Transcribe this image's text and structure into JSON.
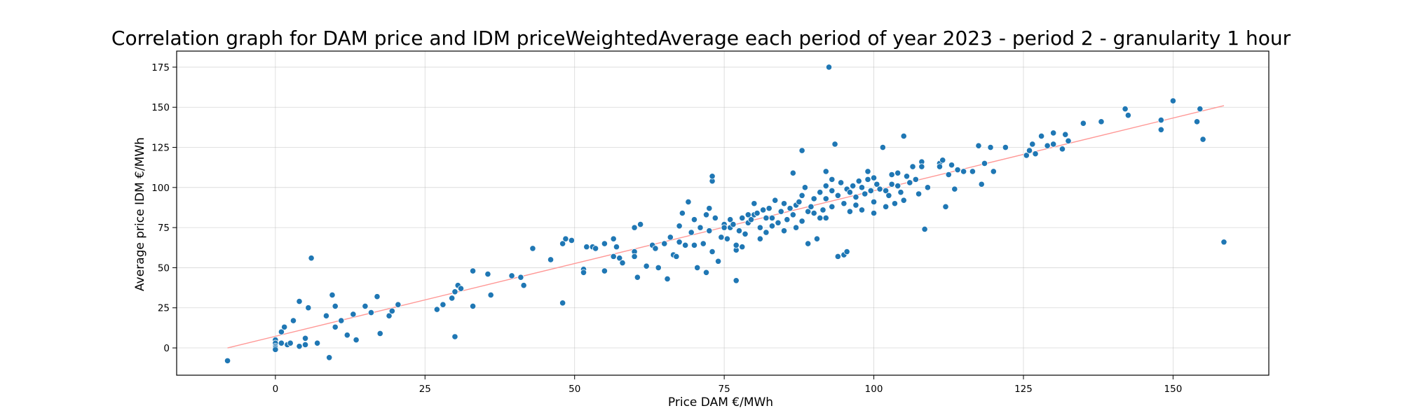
{
  "chart_data": {
    "type": "scatter",
    "title": "Correlation graph for DAM price and IDM priceWeightedAverage each period of year 2023 - period 2 - granularity 1 hour",
    "xlabel": "Price DAM €/MWh",
    "ylabel": "Average price IDM €/MWh",
    "xlim": [
      -16.5,
      166
    ],
    "ylim": [
      -17,
      185
    ],
    "xticks": [
      0,
      25,
      50,
      75,
      100,
      125,
      150
    ],
    "yticks": [
      0,
      25,
      50,
      75,
      100,
      125,
      150,
      175
    ],
    "grid": true,
    "point_color": "#1f77b4",
    "trendline": {
      "color": "#ff9896",
      "x": [
        -8,
        158.5
      ],
      "y": [
        0,
        151
      ]
    },
    "points": [
      [
        -8,
        -8
      ],
      [
        0,
        5
      ],
      [
        0,
        3
      ],
      [
        0,
        1
      ],
      [
        0,
        0
      ],
      [
        0,
        -1
      ],
      [
        1,
        10
      ],
      [
        1,
        3
      ],
      [
        1.5,
        13
      ],
      [
        2,
        2
      ],
      [
        2.5,
        3
      ],
      [
        3,
        17
      ],
      [
        4,
        1
      ],
      [
        4,
        29
      ],
      [
        5,
        6
      ],
      [
        5,
        2
      ],
      [
        5.5,
        25
      ],
      [
        6,
        56
      ],
      [
        7,
        3
      ],
      [
        8.5,
        20
      ],
      [
        9,
        -6
      ],
      [
        9.5,
        33
      ],
      [
        10,
        26
      ],
      [
        10,
        13
      ],
      [
        11,
        17
      ],
      [
        12,
        8
      ],
      [
        13,
        21
      ],
      [
        13.5,
        5
      ],
      [
        15,
        26
      ],
      [
        16,
        22
      ],
      [
        17,
        32
      ],
      [
        17.5,
        9
      ],
      [
        19,
        20
      ],
      [
        19.5,
        23
      ],
      [
        20.5,
        27
      ],
      [
        27,
        24
      ],
      [
        28,
        27
      ],
      [
        29.5,
        31
      ],
      [
        30,
        35
      ],
      [
        30,
        7
      ],
      [
        30.5,
        39
      ],
      [
        31,
        37
      ],
      [
        33,
        26
      ],
      [
        33,
        48
      ],
      [
        35.5,
        46
      ],
      [
        36,
        33
      ],
      [
        39.5,
        45
      ],
      [
        41,
        44
      ],
      [
        41.5,
        39
      ],
      [
        43,
        62
      ],
      [
        46,
        55
      ],
      [
        48,
        28
      ],
      [
        48,
        65
      ],
      [
        48.5,
        68
      ],
      [
        49.5,
        67
      ],
      [
        51.5,
        49
      ],
      [
        51.5,
        47
      ],
      [
        52,
        63
      ],
      [
        53,
        63
      ],
      [
        53.5,
        62
      ],
      [
        55,
        65
      ],
      [
        55,
        48
      ],
      [
        56.5,
        57
      ],
      [
        56.5,
        68
      ],
      [
        57,
        63
      ],
      [
        57.5,
        56
      ],
      [
        58,
        53
      ],
      [
        60,
        75
      ],
      [
        60,
        60
      ],
      [
        60,
        57
      ],
      [
        60.5,
        44
      ],
      [
        61,
        77
      ],
      [
        62,
        51
      ],
      [
        63,
        64
      ],
      [
        63.5,
        62
      ],
      [
        64,
        50
      ],
      [
        65,
        65
      ],
      [
        65.5,
        43
      ],
      [
        66,
        69
      ],
      [
        66.5,
        58
      ],
      [
        67,
        57
      ],
      [
        67.5,
        76
      ],
      [
        67.5,
        66
      ],
      [
        68,
        84
      ],
      [
        68.5,
        64
      ],
      [
        69,
        91
      ],
      [
        69.5,
        72
      ],
      [
        70,
        80
      ],
      [
        70,
        64
      ],
      [
        70.5,
        50
      ],
      [
        71,
        75
      ],
      [
        71.5,
        65
      ],
      [
        72,
        47
      ],
      [
        72,
        83
      ],
      [
        72.5,
        73
      ],
      [
        72.5,
        87
      ],
      [
        73,
        60
      ],
      [
        73,
        104
      ],
      [
        73,
        107
      ],
      [
        73.5,
        81
      ],
      [
        74,
        54
      ],
      [
        74.5,
        69
      ],
      [
        75,
        77
      ],
      [
        75,
        75
      ],
      [
        75.5,
        68
      ],
      [
        76,
        80
      ],
      [
        76,
        75
      ],
      [
        76.5,
        77
      ],
      [
        77,
        61
      ],
      [
        77,
        64
      ],
      [
        77,
        42
      ],
      [
        77.5,
        73
      ],
      [
        78,
        81
      ],
      [
        78,
        63
      ],
      [
        78.5,
        71
      ],
      [
        79,
        83
      ],
      [
        79,
        78
      ],
      [
        79.5,
        80
      ],
      [
        80,
        83
      ],
      [
        80,
        90
      ],
      [
        80.5,
        84
      ],
      [
        81,
        75
      ],
      [
        81,
        68
      ],
      [
        81.5,
        86
      ],
      [
        82,
        72
      ],
      [
        82,
        81
      ],
      [
        82.5,
        87
      ],
      [
        83,
        76
      ],
      [
        83,
        81
      ],
      [
        83.5,
        92
      ],
      [
        84,
        78
      ],
      [
        84.5,
        85
      ],
      [
        85,
        90
      ],
      [
        85,
        73
      ],
      [
        85.5,
        80
      ],
      [
        86,
        87
      ],
      [
        86.5,
        83
      ],
      [
        86.5,
        109
      ],
      [
        87,
        89
      ],
      [
        87,
        75
      ],
      [
        87.5,
        91
      ],
      [
        88,
        95
      ],
      [
        88,
        79
      ],
      [
        88,
        123
      ],
      [
        88.5,
        100
      ],
      [
        89,
        85
      ],
      [
        89,
        65
      ],
      [
        89.5,
        88
      ],
      [
        90,
        93
      ],
      [
        90,
        84
      ],
      [
        90.5,
        68
      ],
      [
        91,
        97
      ],
      [
        91,
        81
      ],
      [
        91.5,
        86
      ],
      [
        92,
        101
      ],
      [
        92,
        93
      ],
      [
        92,
        81
      ],
      [
        92,
        110
      ],
      [
        92.5,
        175
      ],
      [
        93,
        98
      ],
      [
        93,
        88
      ],
      [
        93,
        105
      ],
      [
        93.5,
        127
      ],
      [
        94,
        95
      ],
      [
        94,
        57
      ],
      [
        94.5,
        103
      ],
      [
        95,
        90
      ],
      [
        95,
        58
      ],
      [
        95.5,
        99
      ],
      [
        95.5,
        60
      ],
      [
        96,
        97
      ],
      [
        96,
        85
      ],
      [
        96.5,
        101
      ],
      [
        97,
        94
      ],
      [
        97,
        89
      ],
      [
        97.5,
        104
      ],
      [
        98,
        100
      ],
      [
        98,
        86
      ],
      [
        98.5,
        96
      ],
      [
        99,
        105
      ],
      [
        99,
        110
      ],
      [
        99.5,
        98
      ],
      [
        100,
        91
      ],
      [
        100,
        84
      ],
      [
        100,
        106
      ],
      [
        100.5,
        102
      ],
      [
        101,
        99
      ],
      [
        101.5,
        125
      ],
      [
        102,
        98
      ],
      [
        102,
        88
      ],
      [
        102.5,
        95
      ],
      [
        103,
        108
      ],
      [
        103,
        102
      ],
      [
        103.5,
        90
      ],
      [
        104,
        101
      ],
      [
        104,
        109
      ],
      [
        104.5,
        97
      ],
      [
        105,
        132
      ],
      [
        105,
        92
      ],
      [
        105.5,
        107
      ],
      [
        106,
        103
      ],
      [
        106.5,
        113
      ],
      [
        107,
        105
      ],
      [
        107.5,
        96
      ],
      [
        108,
        116
      ],
      [
        108,
        113
      ],
      [
        108.5,
        74
      ],
      [
        109,
        100
      ],
      [
        111,
        115
      ],
      [
        111,
        113
      ],
      [
        111.5,
        117
      ],
      [
        112,
        88
      ],
      [
        112.5,
        108
      ],
      [
        113,
        114
      ],
      [
        113.5,
        99
      ],
      [
        114,
        111
      ],
      [
        115,
        110
      ],
      [
        116.5,
        110
      ],
      [
        117.5,
        126
      ],
      [
        118,
        102
      ],
      [
        118.5,
        115
      ],
      [
        119.5,
        125
      ],
      [
        120,
        110
      ],
      [
        122,
        125
      ],
      [
        125.5,
        120
      ],
      [
        126,
        123
      ],
      [
        126.5,
        127
      ],
      [
        127,
        121
      ],
      [
        128,
        132
      ],
      [
        129,
        126
      ],
      [
        130,
        134
      ],
      [
        130,
        127
      ],
      [
        131.5,
        124
      ],
      [
        132,
        133
      ],
      [
        132.5,
        129
      ],
      [
        135,
        140
      ],
      [
        138,
        141
      ],
      [
        142,
        149
      ],
      [
        142.5,
        145
      ],
      [
        148,
        142
      ],
      [
        148,
        136
      ],
      [
        150,
        154
      ],
      [
        154,
        141
      ],
      [
        154.5,
        149
      ],
      [
        155,
        130
      ],
      [
        158.5,
        66
      ]
    ]
  }
}
